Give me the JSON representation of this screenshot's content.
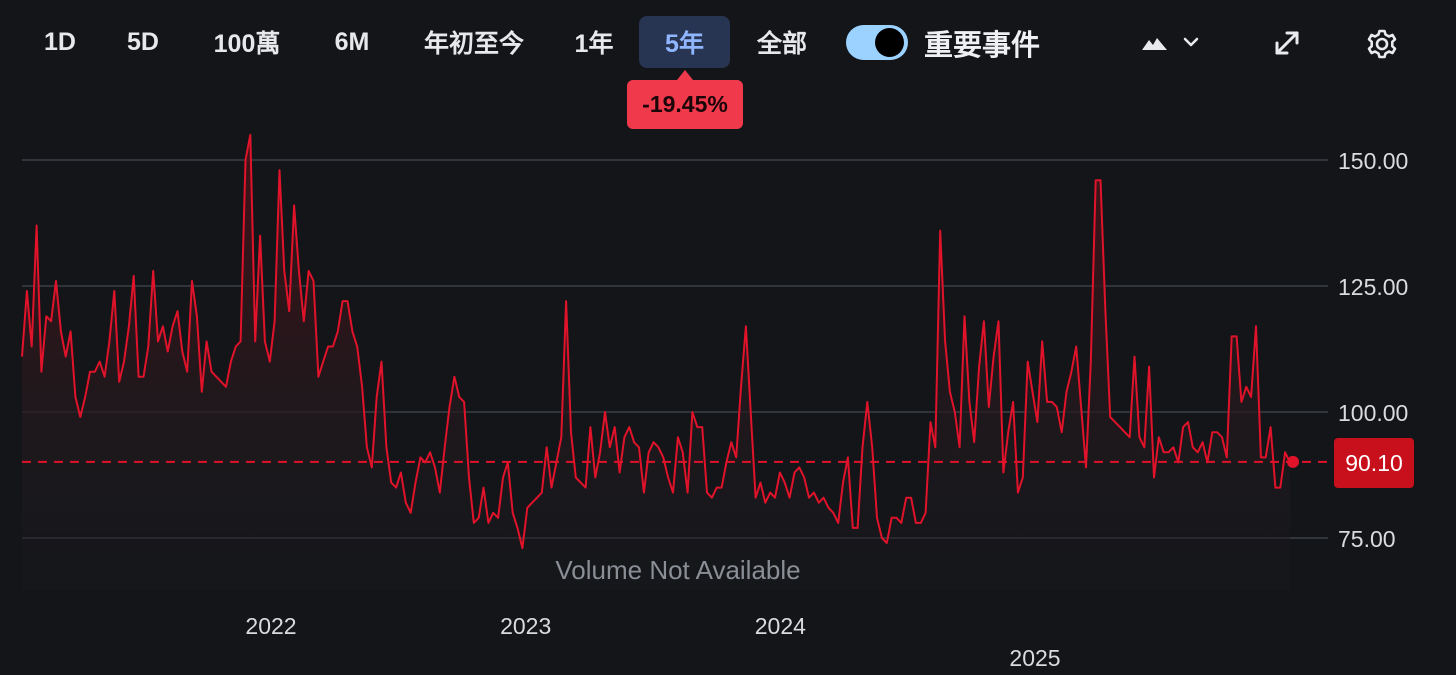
{
  "toolbar": {
    "ranges": [
      {
        "label": "1D",
        "active": false
      },
      {
        "label": "5D",
        "active": false
      },
      {
        "label": "100萬",
        "active": false
      },
      {
        "label": "6M",
        "active": false
      },
      {
        "label": "年初至今",
        "active": false
      },
      {
        "label": "1年",
        "active": false
      },
      {
        "label": "5年",
        "active": true
      },
      {
        "label": "全部",
        "active": false
      }
    ],
    "events_toggle_label": "重要事件",
    "events_toggle_on": true,
    "chart_style_icon": "mountain-area-icon",
    "dropdown_icon": "chevron-down-icon",
    "expand_icon": "expand-arrows-icon",
    "settings_icon": "gear-icon"
  },
  "change_badge": "-19.45%",
  "current_price_label": "90.10",
  "volume_note": "Volume Not Available",
  "colors": {
    "background": "#131519",
    "line": "#e0132a",
    "grid": "#3a3f47",
    "badge": "#f0394b",
    "price_tag": "#c8101c",
    "active_range_bg": "#283552",
    "toggle_track": "#9cd2ff"
  },
  "chart_data": {
    "type": "area",
    "title": "",
    "xlabel": "",
    "ylabel": "",
    "ylim": [
      70,
      157
    ],
    "y_ticks": [
      "150.00",
      "125.00",
      "100.00",
      "75.00"
    ],
    "y_tick_values": [
      150,
      125,
      100,
      75
    ],
    "x_ticks": [
      "2022",
      "2023",
      "2024",
      "2025"
    ],
    "x_tick_values": [
      2022,
      2023,
      2024,
      2025
    ],
    "xlim": [
      2021.0,
      2026.0
    ],
    "reference_line": 90.1,
    "grid": true,
    "series": [
      {
        "values": [
          111,
          124,
          113,
          137,
          108,
          119,
          118,
          126,
          116,
          111,
          116,
          103,
          99,
          103,
          108,
          108,
          110,
          107,
          114,
          124,
          106,
          110,
          117,
          127,
          107,
          107,
          113,
          128,
          114,
          117,
          112,
          117,
          120,
          112,
          108,
          126,
          119,
          104,
          114,
          108,
          107,
          106,
          105,
          110,
          113,
          114,
          150,
          155,
          114,
          135,
          114,
          110,
          118,
          148,
          128,
          120,
          141,
          128,
          118,
          128,
          126,
          107,
          110,
          113,
          113,
          116,
          122,
          122,
          116,
          113,
          105,
          93,
          89,
          103,
          110,
          93,
          86,
          85,
          88,
          82,
          80,
          86,
          91,
          90,
          92,
          89,
          84,
          93,
          101,
          107,
          103,
          102,
          87,
          78,
          79,
          85,
          78,
          80,
          79,
          87,
          90,
          80,
          77,
          73,
          81,
          82,
          83,
          84,
          93,
          85,
          90,
          95,
          122,
          96,
          87,
          86,
          85,
          97,
          87,
          92,
          100,
          93,
          97,
          88,
          95,
          97,
          94,
          93,
          84,
          92,
          94,
          93,
          91,
          87,
          84,
          95,
          92,
          84,
          100,
          97,
          97,
          84,
          83,
          85,
          85,
          90,
          94,
          91,
          105,
          117,
          100,
          83,
          86,
          82,
          84,
          83,
          88,
          86,
          83,
          88,
          89,
          87,
          83,
          84,
          82,
          83,
          81,
          80,
          78,
          86,
          91,
          77,
          77,
          93,
          102,
          93,
          79,
          75,
          74,
          79,
          79,
          78,
          83,
          83,
          78,
          78,
          80,
          98,
          93,
          136,
          114,
          104,
          100,
          93,
          119,
          102,
          94,
          109,
          118,
          101,
          111,
          118,
          88,
          96,
          102,
          84,
          87,
          110,
          104,
          98,
          114,
          102,
          102,
          101,
          96,
          104,
          108,
          113,
          101,
          89,
          110,
          146,
          146,
          120,
          99,
          98,
          97,
          96,
          95,
          111,
          95,
          93,
          109,
          87,
          95,
          92,
          92,
          93,
          90,
          97,
          98,
          93,
          92,
          94,
          90,
          96,
          96,
          95,
          91,
          115,
          115,
          102,
          105,
          103,
          117,
          91,
          91,
          97,
          85,
          85,
          92,
          90
        ]
      }
    ]
  }
}
